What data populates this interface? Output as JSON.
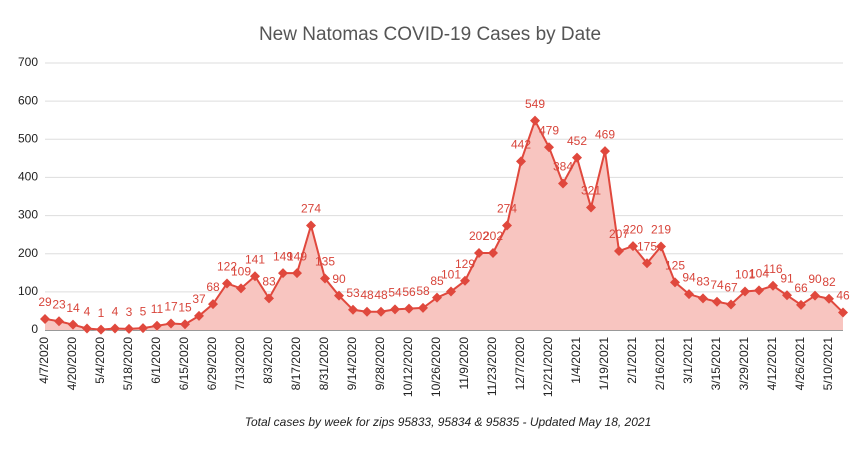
{
  "chart_data": {
    "type": "line",
    "title": "New Natomas COVID-19 Cases by Date",
    "caption": "Total cases by week for zips 95833, 95834 & 95835 - Updated May 18, 2021",
    "categories": [
      "4/7/2020",
      null,
      "4/20/2020",
      null,
      "5/4/2020",
      null,
      "5/18/2020",
      null,
      "6/1/2020",
      null,
      "6/15/2020",
      null,
      "6/29/2020",
      null,
      "7/13/2020",
      null,
      "8/3/2020",
      null,
      "8/17/2020",
      null,
      "8/31/2020",
      null,
      "9/14/2020",
      null,
      "9/28/2020",
      null,
      "10/12/2020",
      null,
      "10/26/2020",
      null,
      "11/9/2020",
      null,
      "11/23/2020",
      null,
      "12/7/2020",
      null,
      "12/21/2020",
      null,
      "1/4/2021",
      null,
      "1/19/2021",
      null,
      "2/1/2021",
      null,
      "2/16/2021",
      null,
      "3/1/2021",
      null,
      "3/15/2021",
      null,
      "3/29/2021",
      null,
      "4/12/2021",
      null,
      "4/26/2021",
      null,
      "5/10/2021",
      null
    ],
    "values": [
      29,
      23,
      14,
      4,
      1,
      4,
      3,
      5,
      11,
      17,
      15,
      37,
      68,
      122,
      109,
      141,
      83,
      149,
      149,
      274,
      135,
      90,
      53,
      48,
      48,
      54,
      56,
      58,
      85,
      101,
      129,
      202,
      202,
      274,
      442,
      549,
      479,
      384,
      452,
      321,
      469,
      207,
      220,
      175,
      219,
      125,
      94,
      83,
      74,
      67,
      101,
      104,
      116,
      91,
      66,
      90,
      82,
      46
    ],
    "color": "#e0483d",
    "area_color": "#f8c5c0",
    "ylim": [
      0,
      700
    ],
    "yticks": [
      0,
      100,
      200,
      300,
      400,
      500,
      600,
      700
    ],
    "grid": true
  }
}
